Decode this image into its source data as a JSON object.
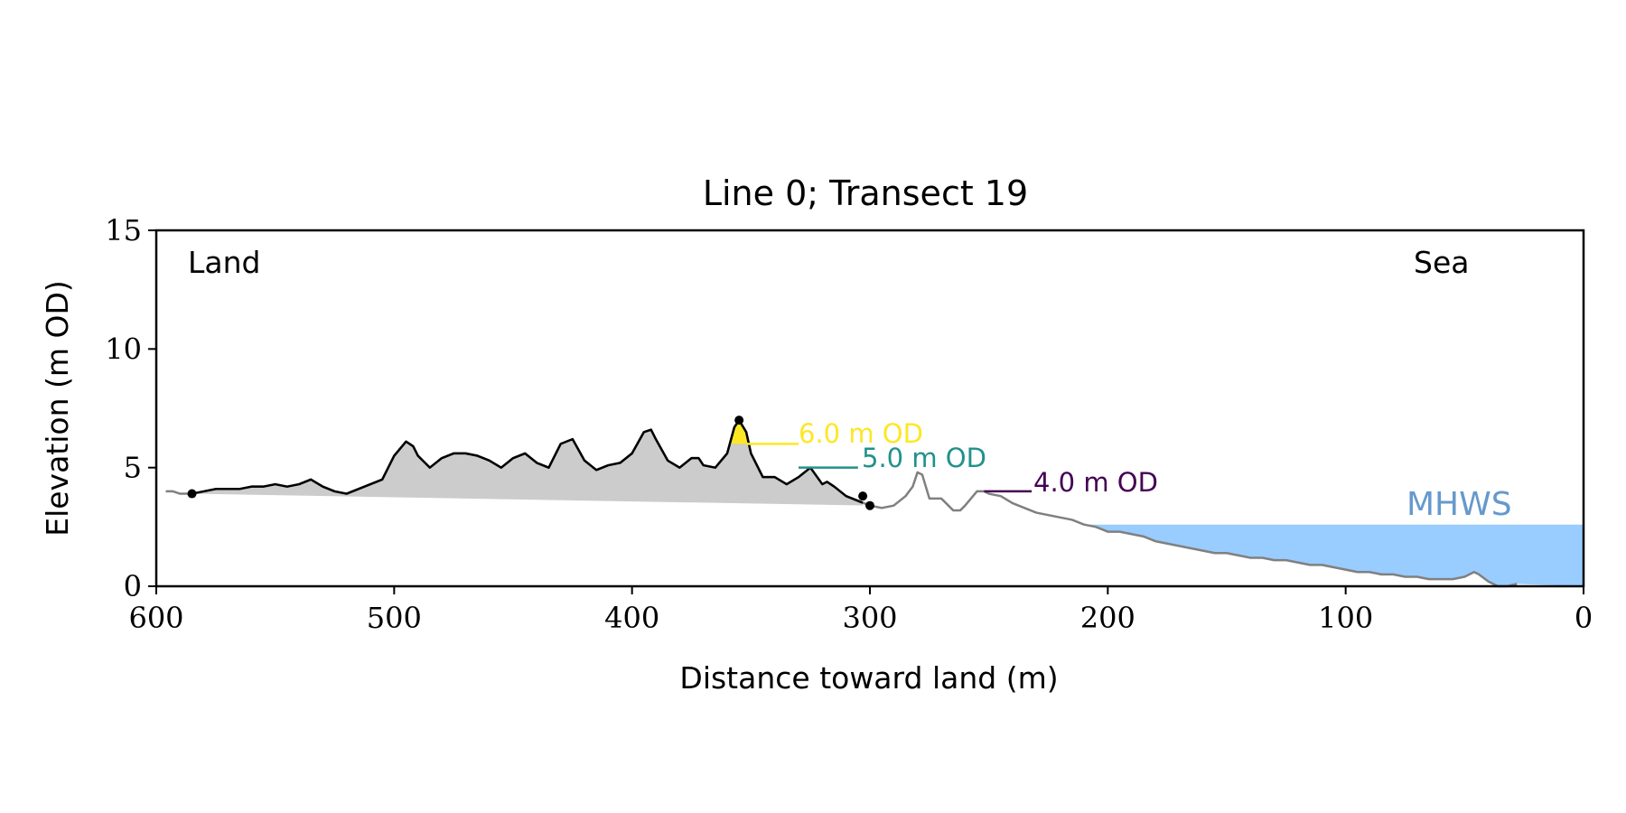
{
  "chart_data": {
    "type": "area",
    "title": "Line 0; Transect 19",
    "xlabel": "Distance toward land (m)",
    "ylabel": "Elevation (m OD)",
    "xlim": [
      600,
      0
    ],
    "ylim": [
      0,
      15
    ],
    "x_ticks": [
      600,
      500,
      400,
      300,
      200,
      100,
      0
    ],
    "x_tick_labels": [
      "600",
      "500",
      "400",
      "300",
      "200",
      "100",
      "0"
    ],
    "y_ticks": [
      0,
      5,
      10,
      15
    ],
    "y_tick_labels": [
      "0",
      "5",
      "10",
      "15"
    ],
    "grid": false,
    "annotations": {
      "land": "Land",
      "sea": "Sea",
      "mhws": "MHWS",
      "contour_6": "6.0 m OD",
      "contour_5": "5.0 m OD",
      "contour_4": "4.0 m OD"
    },
    "colors": {
      "profile_full": "#808080",
      "profile_dune": "#000000",
      "dune_fill": "#cccccc",
      "above_6m_fill": "#fde725",
      "sea_fill": "#99ccff",
      "mhws_text": "#6699cc",
      "contour_6": "#fde725",
      "contour_5": "#21918c",
      "contour_4": "#440154"
    },
    "mhws_level": 2.6,
    "contours": [
      {
        "level": 6.0,
        "x_start": 352,
        "x_end": 330
      },
      {
        "level": 5.0,
        "x_start": 330,
        "x_end": 305
      },
      {
        "level": 4.0,
        "x_start": 252,
        "x_end": 232
      }
    ],
    "profile_full": {
      "x": [
        596,
        593,
        590,
        585,
        580,
        575,
        570,
        565,
        560,
        555,
        550,
        545,
        540,
        535,
        530,
        525,
        520,
        515,
        510,
        505,
        500,
        495,
        492,
        490,
        485,
        480,
        475,
        470,
        465,
        460,
        455,
        450,
        445,
        440,
        435,
        430,
        425,
        420,
        415,
        410,
        405,
        400,
        395,
        392,
        390,
        385,
        380,
        375,
        372,
        370,
        365,
        360,
        357,
        355,
        352,
        350,
        345,
        340,
        335,
        330,
        325,
        320,
        318,
        315,
        310,
        305,
        300,
        295,
        290,
        285,
        282,
        280,
        278,
        275,
        270,
        265,
        262,
        260,
        255,
        252,
        250,
        245,
        240,
        235,
        230,
        225,
        220,
        215,
        210,
        205,
        200,
        195,
        190,
        185,
        180,
        175,
        170,
        165,
        160,
        155,
        150,
        145,
        140,
        135,
        130,
        125,
        120,
        115,
        110,
        105,
        100,
        95,
        90,
        85,
        80,
        75,
        70,
        65,
        60,
        55,
        50,
        46,
        44,
        40,
        36,
        32,
        28
      ],
      "y": [
        4.0,
        4.0,
        3.9,
        3.9,
        4.0,
        4.1,
        4.1,
        4.1,
        4.2,
        4.2,
        4.3,
        4.2,
        4.3,
        4.5,
        4.2,
        4.0,
        3.9,
        4.1,
        4.3,
        4.5,
        5.5,
        6.1,
        5.9,
        5.5,
        5.0,
        5.4,
        5.6,
        5.6,
        5.5,
        5.3,
        5.0,
        5.4,
        5.6,
        5.2,
        5.0,
        6.0,
        6.2,
        5.3,
        4.9,
        5.1,
        5.2,
        5.6,
        6.5,
        6.6,
        6.2,
        5.3,
        5.0,
        5.4,
        5.4,
        5.1,
        5.0,
        5.6,
        6.7,
        7.0,
        6.5,
        5.6,
        4.6,
        4.6,
        4.3,
        4.6,
        5.0,
        4.3,
        4.4,
        4.2,
        3.8,
        3.6,
        3.4,
        3.3,
        3.4,
        3.8,
        4.2,
        4.8,
        4.7,
        3.7,
        3.7,
        3.2,
        3.2,
        3.4,
        4.0,
        4.0,
        3.9,
        3.8,
        3.5,
        3.3,
        3.1,
        3.0,
        2.9,
        2.8,
        2.6,
        2.5,
        2.3,
        2.3,
        2.2,
        2.1,
        1.9,
        1.8,
        1.7,
        1.6,
        1.5,
        1.4,
        1.4,
        1.3,
        1.2,
        1.2,
        1.1,
        1.1,
        1.0,
        0.9,
        0.9,
        0.8,
        0.7,
        0.6,
        0.6,
        0.5,
        0.5,
        0.4,
        0.4,
        0.3,
        0.3,
        0.3,
        0.4,
        0.6,
        0.5,
        0.2,
        0.0,
        0.0,
        0.1
      ]
    },
    "dune_segment": {
      "x_start": 585,
      "x_end": 303
    },
    "dune_toe": {
      "x": [
        585,
        300
      ],
      "y": [
        3.9,
        3.4
      ]
    },
    "dune_crest": {
      "x": 355,
      "y": 7.0
    },
    "markers": [
      {
        "x": 585,
        "y": 3.9
      },
      {
        "x": 355,
        "y": 7.0
      },
      {
        "x": 303,
        "y": 3.8
      },
      {
        "x": 300,
        "y": 3.4
      }
    ]
  }
}
